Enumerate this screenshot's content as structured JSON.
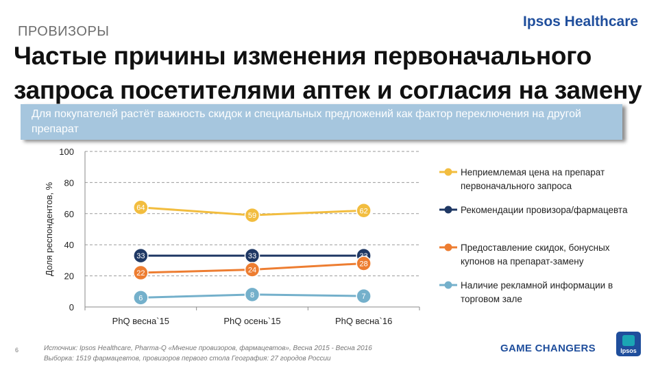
{
  "header": {
    "section_label": "ПРОВИЗОРЫ",
    "brand": "Ipsos Healthcare",
    "title": "Частые причины изменения первоначального запроса посетителями аптек и согласия на замену",
    "banner_text": "Для покупателей растёт важность скидок и специальных предложений как фактор переключения  на другой препарат"
  },
  "chart_data": {
    "type": "line",
    "categories": [
      "PhQ весна`15",
      "PhQ осень`15",
      "PhQ весна`16"
    ],
    "ylabel": "Доля респондентов, %",
    "ylim": [
      0,
      100
    ],
    "yticks": [
      "0",
      "20",
      "40",
      "60",
      "80",
      "100"
    ],
    "grid": true,
    "legend_position": "right",
    "series": [
      {
        "name": "Неприемлемая цена на препарат первоначального запроса",
        "values": [
          64,
          59,
          62
        ],
        "color": "#f2bd3f"
      },
      {
        "name": "Рекомендации провизора/фармацевта",
        "values": [
          33,
          33,
          33
        ],
        "color": "#1f3864"
      },
      {
        "name": "Предоставление скидок, бонусных купонов на препарат-замену",
        "values": [
          22,
          24,
          28
        ],
        "color": "#ed7d31"
      },
      {
        "name": "Наличие рекламной информации в торговом зале",
        "values": [
          6,
          8,
          7
        ],
        "color": "#74b0cb"
      }
    ]
  },
  "footer": {
    "page_number": "6",
    "source_line1": "Источник: Ipsos Healthcare, Pharma-Q «Мнение провизоров, фармацевтов», Весна 2015 - Весна 2016",
    "source_line2": "Выборка:  1519 фармацевтов, провизоров первого стола  География: 27 городов России",
    "tagline": "GAME CHANGERS",
    "logo_text": "Ipsos"
  }
}
